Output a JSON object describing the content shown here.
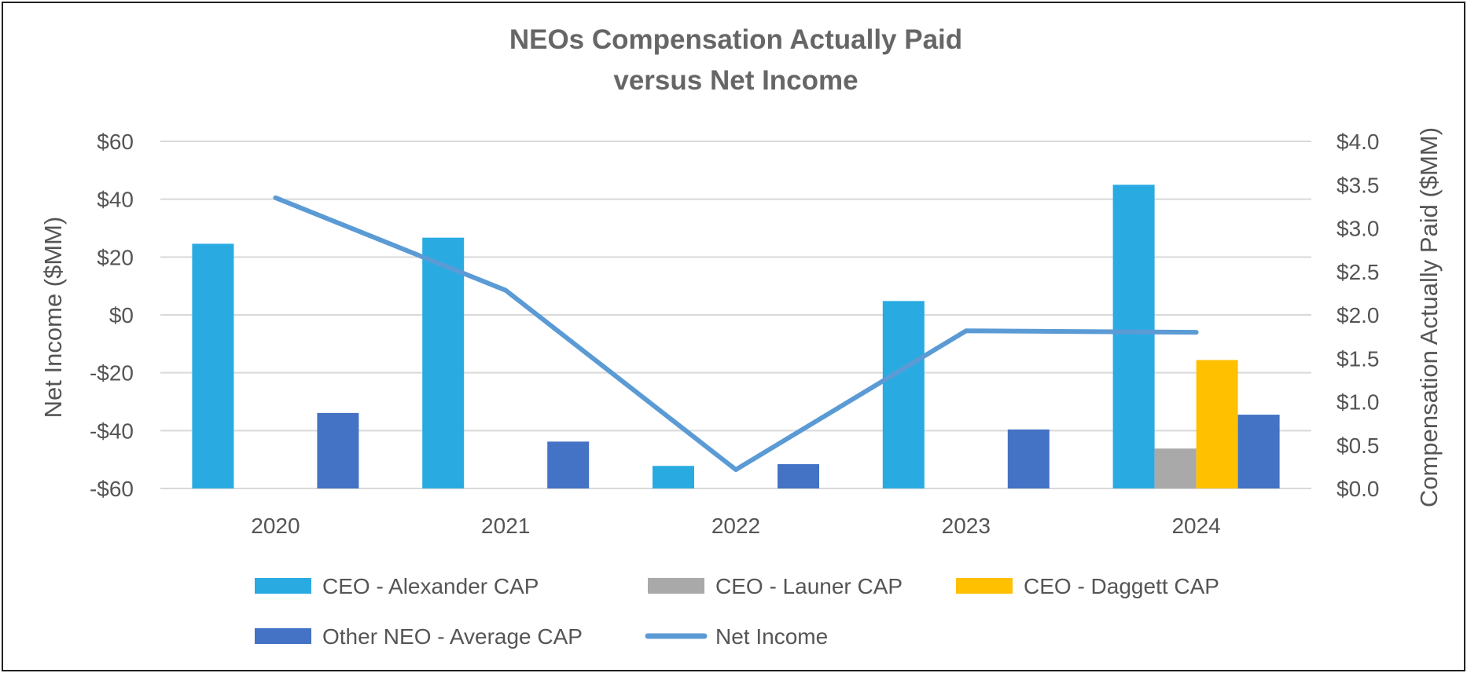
{
  "chart_data": {
    "type": "bar",
    "title": [
      "NEOs Compensation Actually Paid",
      "versus Net Income"
    ],
    "categories": [
      "2020",
      "2021",
      "2022",
      "2023",
      "2024"
    ],
    "y_left": {
      "label": "Net Income ($MM)",
      "range": [
        -60,
        60
      ],
      "ticks": [
        "$60",
        "$40",
        "$20",
        "$0",
        "-$20",
        "-$40",
        "-$60"
      ]
    },
    "y_right": {
      "label": "Compensation Actually Paid ($MM)",
      "range": [
        0,
        4
      ],
      "ticks": [
        "$4.0",
        "$3.5",
        "$3.0",
        "$2.5",
        "$2.0",
        "$1.5",
        "$1.0",
        "$0.5",
        "$0.0"
      ]
    },
    "grid": true,
    "legend_position": "bottom",
    "series": [
      {
        "name": "CEO - Alexander CAP",
        "type": "bar",
        "axis": "right",
        "color": "#29ABE2",
        "values": [
          2.82,
          2.89,
          0.26,
          2.16,
          3.5
        ]
      },
      {
        "name": "CEO - Launer CAP",
        "type": "bar",
        "axis": "right",
        "color": "#A9A9A9",
        "values": [
          null,
          null,
          null,
          null,
          0.46
        ]
      },
      {
        "name": "CEO - Daggett CAP",
        "type": "bar",
        "axis": "right",
        "color": "#FFC000",
        "values": [
          null,
          null,
          null,
          null,
          1.48
        ]
      },
      {
        "name": "Other NEO - Average CAP",
        "type": "bar",
        "axis": "right",
        "color": "#4472C4",
        "values": [
          0.87,
          0.54,
          0.28,
          0.68,
          0.85
        ]
      },
      {
        "name": "Net Income",
        "type": "line",
        "axis": "left",
        "color": "#5B9BD5",
        "values": [
          40.5,
          8.5,
          -53.5,
          -5.5,
          -6
        ]
      }
    ]
  }
}
